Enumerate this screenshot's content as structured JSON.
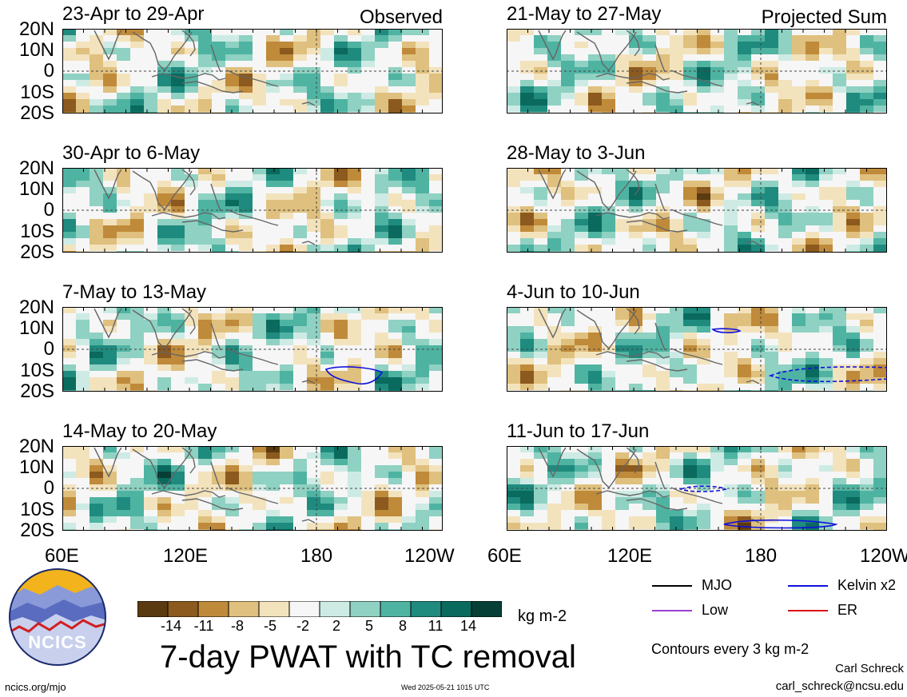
{
  "panels": [
    {
      "title": "23-Apr to 29-Apr",
      "tag": "Observed"
    },
    {
      "title": "21-May to 27-May",
      "tag": "Projected Sum"
    },
    {
      "title": "30-Apr to 6-May",
      "tag": ""
    },
    {
      "title": "28-May to 3-Jun",
      "tag": ""
    },
    {
      "title": "7-May to 13-May",
      "tag": ""
    },
    {
      "title": "4-Jun to 10-Jun",
      "tag": ""
    },
    {
      "title": "14-May to 20-May",
      "tag": ""
    },
    {
      "title": "11-Jun to 17-Jun",
      "tag": ""
    }
  ],
  "lat_labels": [
    "20N",
    "10N",
    "0",
    "10S",
    "20S"
  ],
  "lon_labels": [
    "60E",
    "120E",
    "180",
    "120W"
  ],
  "colorbar": {
    "colors": [
      "#5a3a10",
      "#8c5a1e",
      "#bf8a3a",
      "#dfc07e",
      "#f3e3bd",
      "#f6f6f6",
      "#cdebe4",
      "#8fd1c2",
      "#4fb3a2",
      "#1f8a7e",
      "#0a6a5e",
      "#063f36"
    ],
    "ticks": [
      "-14",
      "-11",
      "-8",
      "-5",
      "-2",
      "2",
      "5",
      "8",
      "11",
      "14"
    ],
    "unit": "kg m-2"
  },
  "title": "7-day PWAT with TC removal",
  "legend": [
    {
      "label": "MJO",
      "color": "#000000"
    },
    {
      "label": "Kelvin x2",
      "color": "#1010dd"
    },
    {
      "label": "Low",
      "color": "#9a40d0"
    },
    {
      "label": "ER",
      "color": "#dd1010"
    }
  ],
  "contour_note": "Contours every 3 kg m-2",
  "credit_name": "Carl Schreck",
  "credit_email": "carl_schreck@ncsu.edu",
  "site": "ncics.org/mjo",
  "timestamp": "Wed 2025-05-21 1015 UTC",
  "logo_text": "NCICS"
}
